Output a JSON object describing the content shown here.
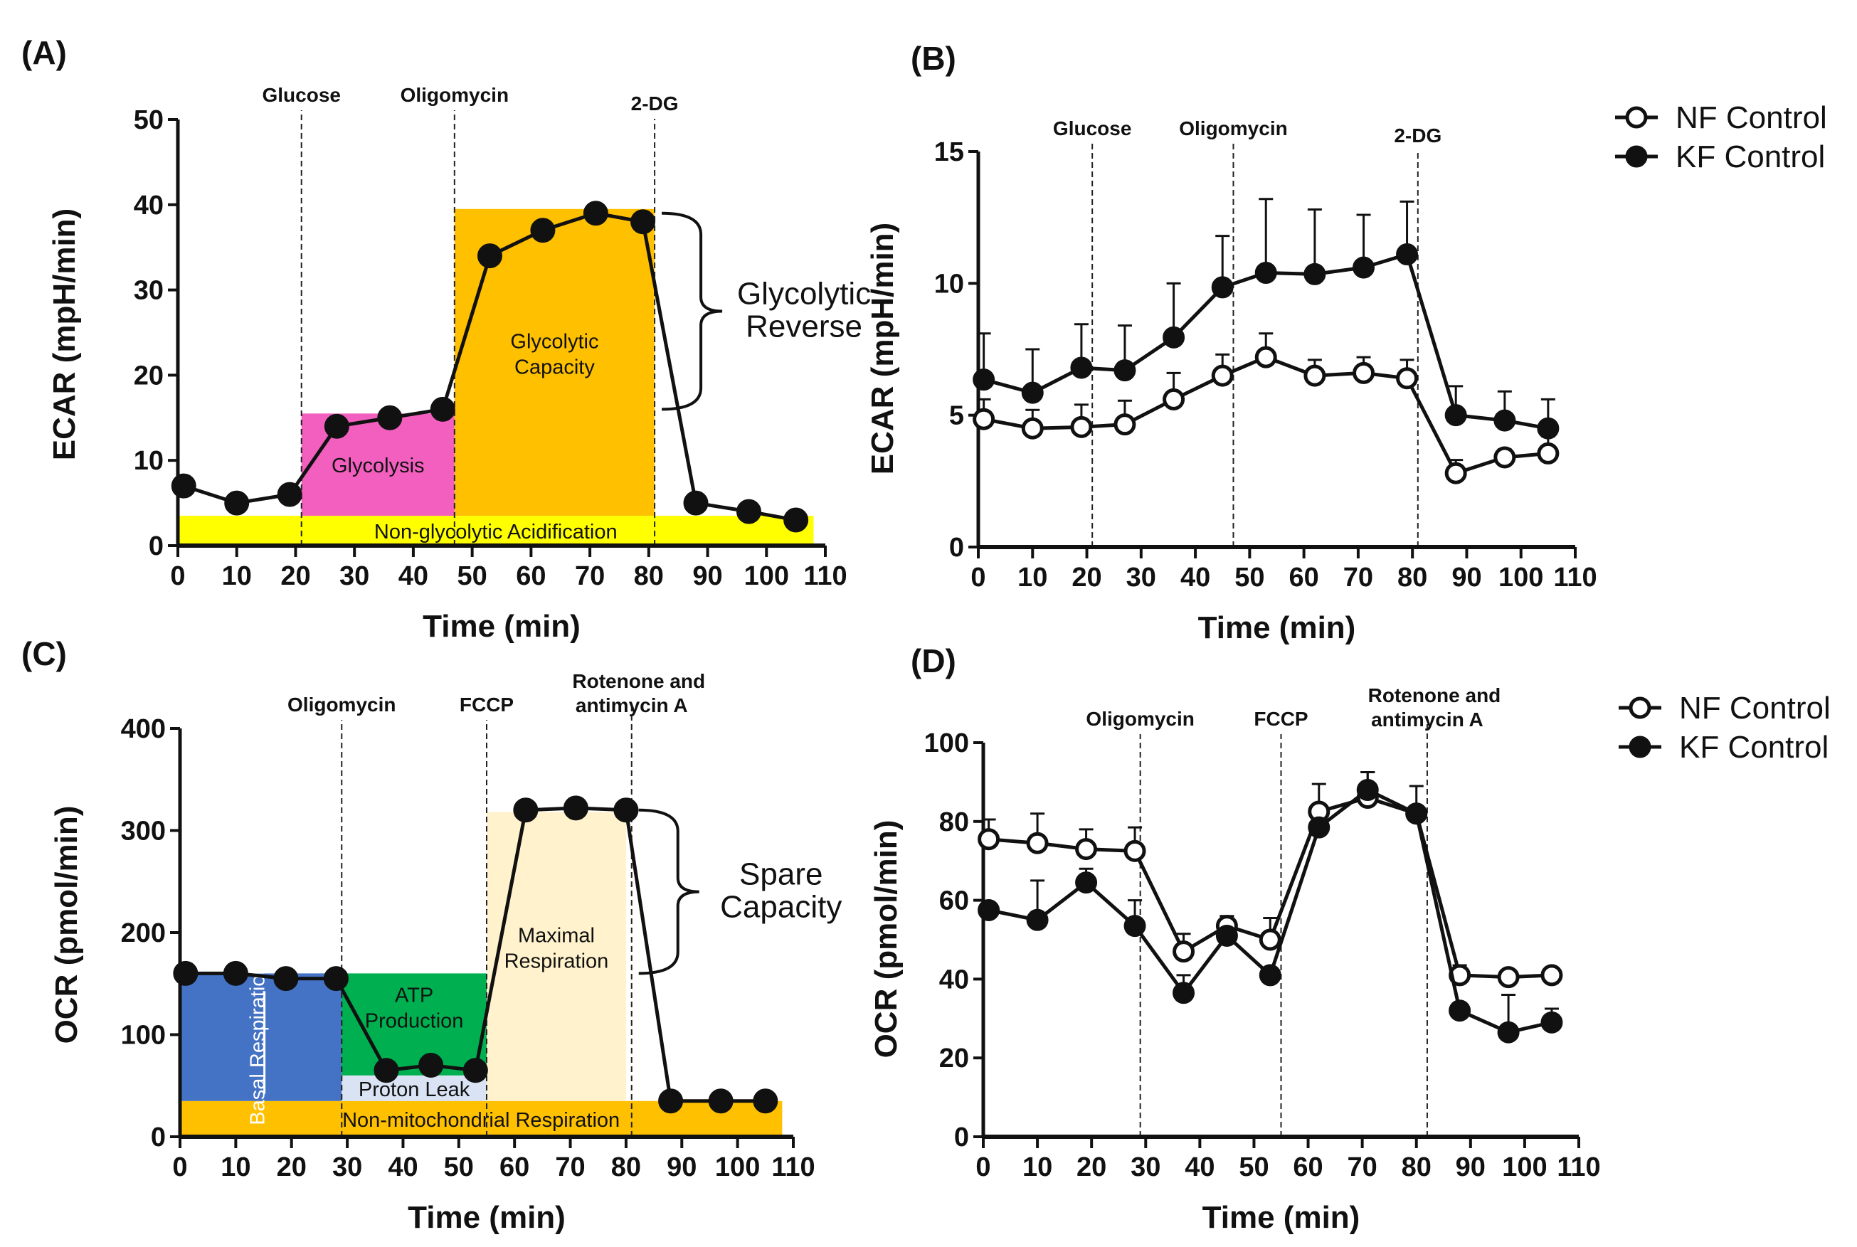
{
  "chart_data": [
    {
      "panel": "(A)",
      "type": "line",
      "xlabel": "Time   (min)",
      "ylabel": "ECAR (mpH/min)",
      "xlim": [
        0,
        110
      ],
      "ylim": [
        0,
        50
      ],
      "xticks": [
        0,
        10,
        20,
        30,
        40,
        50,
        60,
        70,
        80,
        90,
        100,
        110
      ],
      "yticks": [
        0,
        10,
        20,
        30,
        40,
        50
      ],
      "injections": [
        {
          "label": "Glucose",
          "x": 21
        },
        {
          "label": "Oligomycin",
          "x": 47
        },
        {
          "label": "2-DG",
          "x": 81
        }
      ],
      "regions": [
        {
          "label": "Non-glycolytic Acidification",
          "x": [
            0,
            108
          ],
          "y": [
            0,
            3.5
          ],
          "color": "#ffff00"
        },
        {
          "label": "Glycolysis",
          "x": [
            21,
            47
          ],
          "y": [
            3.5,
            15.5
          ],
          "color": "#f25fbf"
        },
        {
          "label": "Glycolytic Capacity",
          "x": [
            47,
            81
          ],
          "y": [
            3.5,
            39.5
          ],
          "color": "#ffc000"
        }
      ],
      "brace": {
        "label": [
          "Glycolytic",
          "Reverse"
        ],
        "y": [
          16,
          39
        ]
      },
      "series": [
        {
          "name": "ECAR",
          "filled": true,
          "x": [
            1,
            10,
            19,
            27,
            36,
            45,
            53,
            62,
            71,
            79,
            88,
            97,
            105
          ],
          "y": [
            7,
            5,
            6,
            14,
            15,
            16,
            34,
            37,
            39,
            38,
            5,
            4,
            3
          ]
        }
      ]
    },
    {
      "panel": "(B)",
      "type": "line",
      "xlabel": "Time   (min)",
      "ylabel": "ECAR (mpH/min)",
      "xlim": [
        0,
        110
      ],
      "ylim": [
        0,
        15
      ],
      "xticks": [
        0,
        10,
        20,
        30,
        40,
        50,
        60,
        70,
        80,
        90,
        100,
        110
      ],
      "yticks": [
        0,
        5,
        10,
        15
      ],
      "injections": [
        {
          "label": "Glucose",
          "x": 21
        },
        {
          "label": "Oligomycin",
          "x": 47
        },
        {
          "label": "2-DG",
          "x": 81
        }
      ],
      "legend": "top-right",
      "series": [
        {
          "name": "NF Control",
          "filled": false,
          "x": [
            1,
            10,
            19,
            27,
            36,
            45,
            53,
            62,
            71,
            79,
            88,
            97,
            105
          ],
          "y": [
            4.85,
            4.5,
            4.55,
            4.65,
            5.6,
            6.5,
            7.2,
            6.5,
            6.6,
            6.4,
            2.8,
            3.4,
            3.55
          ],
          "err": [
            0.75,
            0.7,
            0.85,
            0.9,
            1.0,
            0.8,
            0.9,
            0.6,
            0.6,
            0.7,
            0.5,
            0.3,
            0.65
          ]
        },
        {
          "name": "KF Control",
          "filled": true,
          "x": [
            1,
            10,
            19,
            27,
            36,
            45,
            53,
            62,
            71,
            79,
            88,
            97,
            105
          ],
          "y": [
            6.35,
            5.85,
            6.8,
            6.7,
            7.95,
            9.85,
            10.4,
            10.35,
            10.6,
            11.1,
            5.0,
            4.8,
            4.5
          ],
          "err": [
            1.75,
            1.65,
            1.65,
            1.7,
            2.05,
            1.95,
            2.8,
            2.45,
            2.0,
            2.0,
            1.1,
            1.1,
            1.1
          ]
        }
      ]
    },
    {
      "panel": "(C)",
      "type": "line",
      "xlabel": "Time   (min)",
      "ylabel": "OCR (pmol/min)",
      "xlim": [
        0,
        110
      ],
      "ylim": [
        0,
        400
      ],
      "xticks": [
        0,
        10,
        20,
        30,
        40,
        50,
        60,
        70,
        80,
        90,
        100,
        110
      ],
      "yticks": [
        0,
        100,
        200,
        300,
        400
      ],
      "injections": [
        {
          "label": "Oligomycin",
          "x": 29
        },
        {
          "label": "FCCP",
          "x": 55
        },
        {
          "label": "Rotenone and antimycin A",
          "x": 81
        }
      ],
      "regions": [
        {
          "label": "Non-mitochondrial Respiration",
          "x": [
            0,
            108
          ],
          "y": [
            0,
            35
          ],
          "color": "#ffc000"
        },
        {
          "label": "Basal Respiration",
          "x": [
            0,
            29
          ],
          "y": [
            35,
            160
          ],
          "color": "#4472c4"
        },
        {
          "label": "ATP Production",
          "x": [
            29,
            55
          ],
          "y": [
            60,
            160
          ],
          "color": "#00b050"
        },
        {
          "label": "Proton Leak",
          "x": [
            29,
            55
          ],
          "y": [
            35,
            60
          ],
          "color": "#dae3f3"
        },
        {
          "label": "Maximal Respiration",
          "x": [
            55,
            80
          ],
          "y": [
            35,
            318
          ],
          "color": "#fff2cc"
        }
      ],
      "brace": {
        "label": [
          "Spare",
          "Capacity"
        ],
        "y": [
          160,
          320
        ]
      },
      "series": [
        {
          "name": "OCR",
          "filled": true,
          "x": [
            1,
            10,
            19,
            28,
            37,
            45,
            53,
            62,
            71,
            80,
            88,
            97,
            105
          ],
          "y": [
            160,
            160,
            155,
            155,
            65,
            70,
            65,
            320,
            322,
            320,
            35,
            35,
            35
          ]
        }
      ]
    },
    {
      "panel": "(D)",
      "type": "line",
      "xlabel": "Time   (min)",
      "ylabel": "OCR (pmol/min)",
      "xlim": [
        0,
        110
      ],
      "ylim": [
        0,
        100
      ],
      "xticks": [
        0,
        10,
        20,
        30,
        40,
        50,
        60,
        70,
        80,
        90,
        100,
        110
      ],
      "yticks": [
        0,
        20,
        40,
        60,
        80,
        100
      ],
      "injections": [
        {
          "label": "Oligomycin",
          "x": 29
        },
        {
          "label": "FCCP",
          "x": 55
        },
        {
          "label": "Rotenone and antimycin A",
          "x": 82
        }
      ],
      "legend": "top-right",
      "series": [
        {
          "name": "NF Control",
          "filled": false,
          "x": [
            1,
            10,
            19,
            28,
            37,
            45,
            53,
            62,
            71,
            80,
            88,
            97,
            105
          ],
          "y": [
            75.5,
            74.5,
            73,
            72.5,
            47,
            53.5,
            50,
            82.5,
            86,
            82,
            41,
            40.5,
            41
          ],
          "err": [
            5,
            7.5,
            5,
            6,
            4.5,
            2.5,
            5.5,
            7,
            6.5,
            7,
            2.5,
            0,
            0
          ]
        },
        {
          "name": "KF Control",
          "filled": true,
          "x": [
            1,
            10,
            19,
            28,
            37,
            45,
            53,
            62,
            71,
            80,
            88,
            97,
            105
          ],
          "y": [
            57.5,
            55,
            64.5,
            53.5,
            36.5,
            51,
            41,
            78.5,
            88,
            82,
            32,
            26.5,
            29
          ],
          "err": [
            0,
            10,
            3.5,
            6.5,
            4.5,
            0,
            0,
            0,
            4.5,
            0,
            0,
            9.5,
            3.5
          ]
        }
      ]
    }
  ]
}
